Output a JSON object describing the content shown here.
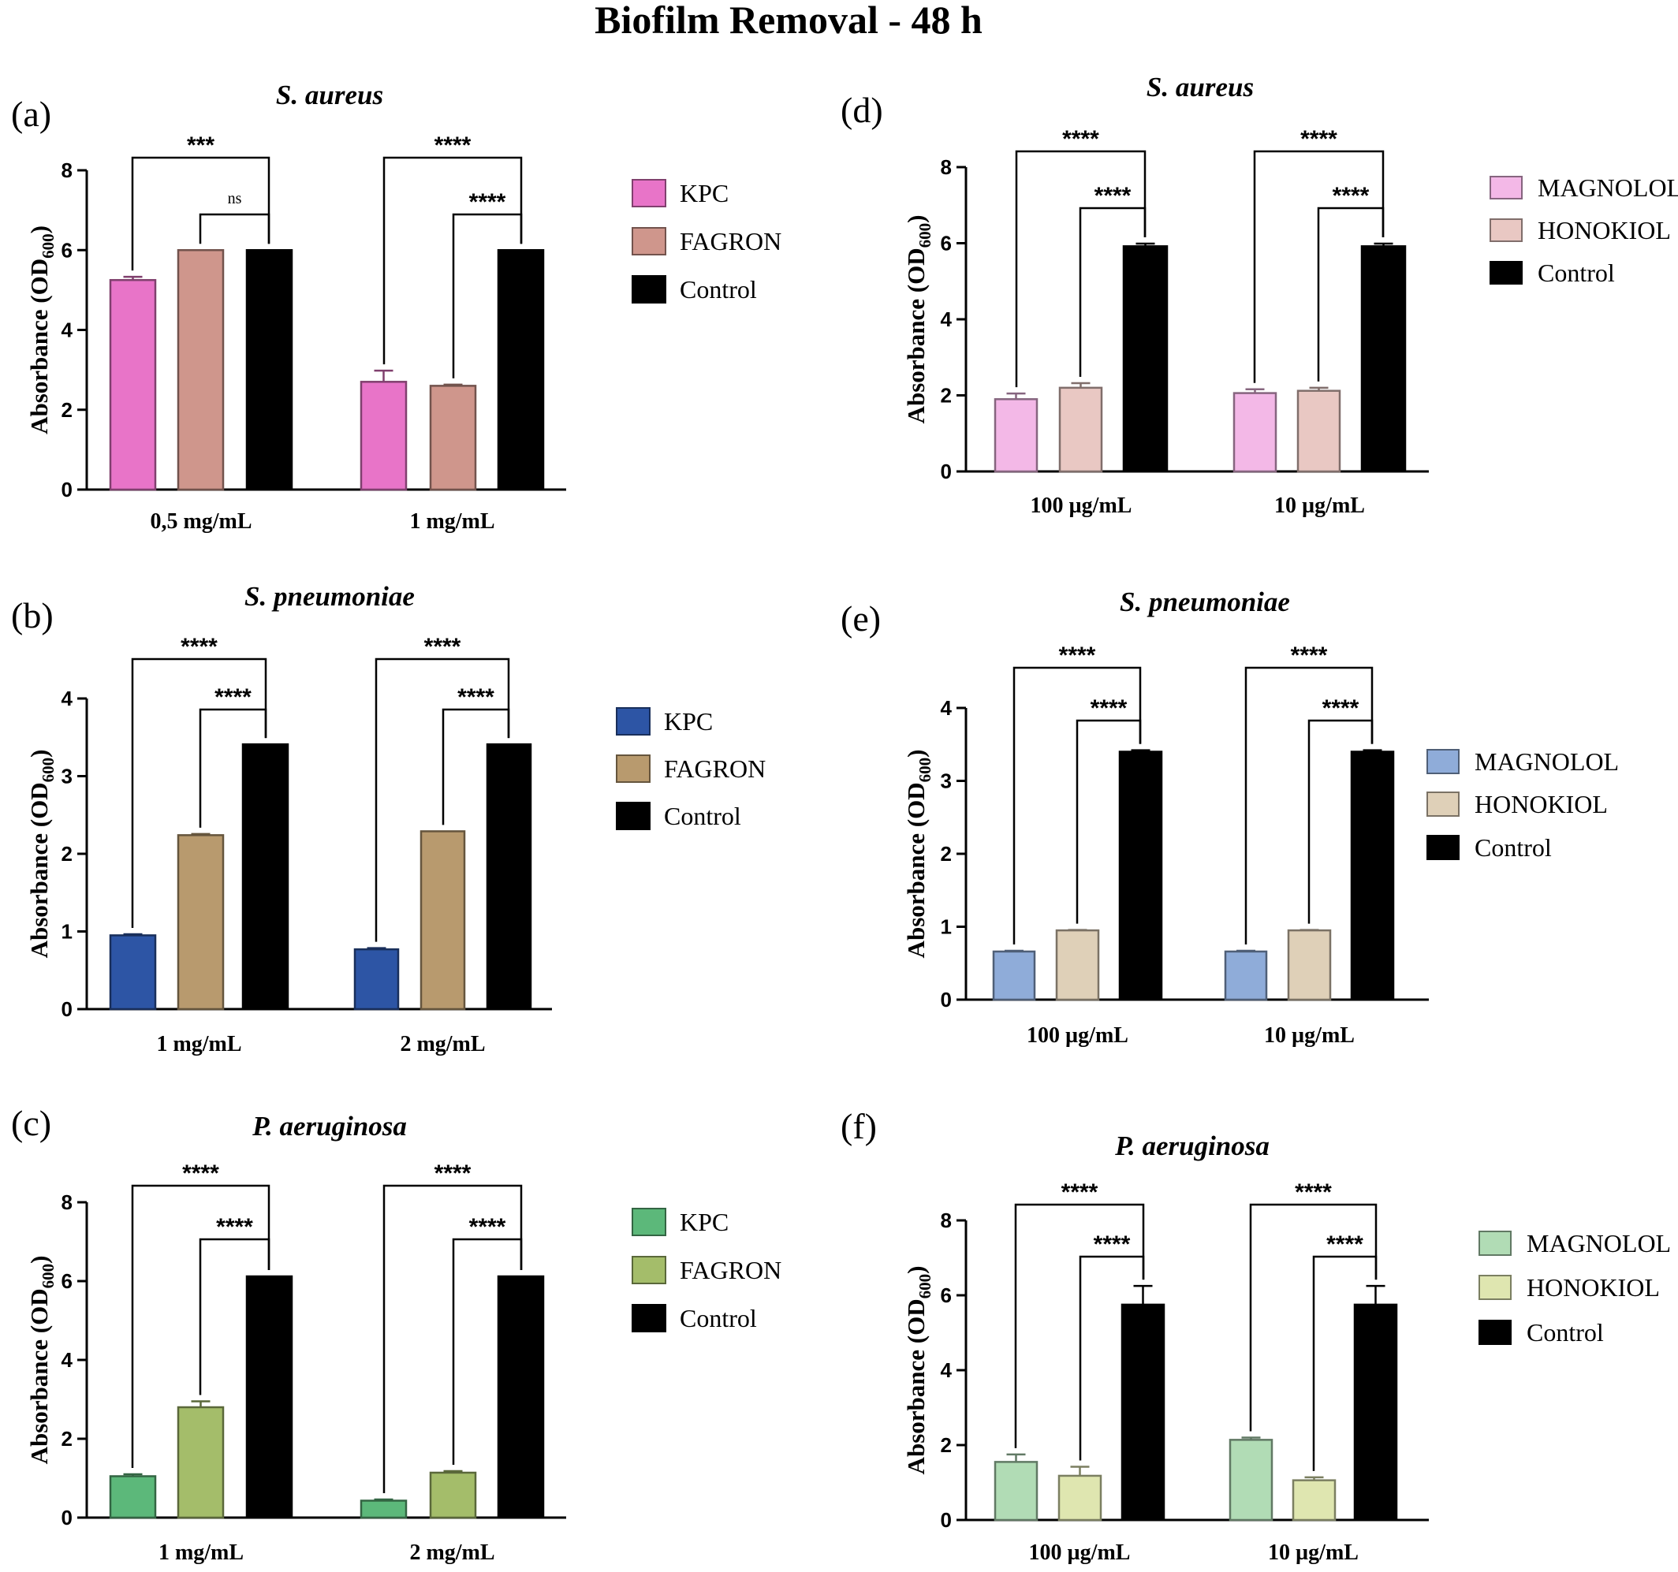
{
  "figure_title": "Biofilm Removal - 48 h",
  "chart_data": [
    {
      "panel": "(a)",
      "title": "S. aureus",
      "type": "bar",
      "ylabel_main": "Absorbance (OD",
      "ylabel_sub": "600",
      "ylabel_end": ")",
      "ylim": [
        0,
        8
      ],
      "yticks": [
        "0",
        "2",
        "4",
        "6",
        "8"
      ],
      "categories": [
        "0,5 mg/mL",
        "1 mg/mL"
      ],
      "series": [
        {
          "name": "KPC",
          "color": "#e874c8",
          "values": [
            5.25,
            2.7
          ],
          "errors": [
            0.08,
            0.28
          ]
        },
        {
          "name": "FAGRON",
          "color": "#cf968c",
          "values": [
            6.0,
            2.6
          ],
          "errors": [
            0,
            0.03
          ]
        },
        {
          "name": "Control",
          "color": "#000000",
          "values": [
            6.0,
            6.0
          ],
          "errors": [
            0,
            0
          ]
        }
      ],
      "significance": [
        {
          "category": 0,
          "from": 0,
          "label": "***"
        },
        {
          "category": 0,
          "from": 1,
          "label": "ns"
        },
        {
          "category": 1,
          "from": 0,
          "label": "****"
        },
        {
          "category": 1,
          "from": 1,
          "label": "****"
        }
      ]
    },
    {
      "panel": "(b)",
      "title": "S. pneumoniae",
      "type": "bar",
      "ylabel_main": "Absorbance (OD",
      "ylabel_sub": "600",
      "ylabel_end": ")",
      "ylim": [
        0,
        4
      ],
      "yticks": [
        "0",
        "1",
        "2",
        "3",
        "4"
      ],
      "categories": [
        "1 mg/mL",
        "2 mg/mL"
      ],
      "series": [
        {
          "name": "KPC",
          "color": "#2d55a5",
          "values": [
            0.95,
            0.77
          ],
          "errors": [
            0.015,
            0.015
          ]
        },
        {
          "name": "FAGRON",
          "color": "#b89a6e",
          "values": [
            2.24,
            2.29
          ],
          "errors": [
            0.015,
            0
          ]
        },
        {
          "name": "Control",
          "color": "#000000",
          "values": [
            3.41,
            3.41
          ],
          "errors": [
            0,
            0
          ]
        }
      ],
      "significance": [
        {
          "category": 0,
          "from": 0,
          "label": "****"
        },
        {
          "category": 0,
          "from": 1,
          "label": "****"
        },
        {
          "category": 1,
          "from": 0,
          "label": "****"
        },
        {
          "category": 1,
          "from": 1,
          "label": "****"
        }
      ]
    },
    {
      "panel": "(c)",
      "title": "P. aeruginosa",
      "type": "bar",
      "ylabel_main": "Absorbance (OD",
      "ylabel_sub": "600",
      "ylabel_end": ")",
      "ylim": [
        0,
        8
      ],
      "yticks": [
        "0",
        "2",
        "4",
        "6",
        "8"
      ],
      "categories": [
        "1 mg/mL",
        "2 mg/mL"
      ],
      "series": [
        {
          "name": "KPC",
          "color": "#5cb87a",
          "values": [
            1.05,
            0.43
          ],
          "errors": [
            0.05,
            0.03
          ]
        },
        {
          "name": "FAGRON",
          "color": "#a4bd6a",
          "values": [
            2.8,
            1.14
          ],
          "errors": [
            0.15,
            0.04
          ]
        },
        {
          "name": "Control",
          "color": "#000000",
          "values": [
            6.12,
            6.12
          ],
          "errors": [
            0,
            0
          ]
        }
      ],
      "significance": [
        {
          "category": 0,
          "from": 0,
          "label": "****"
        },
        {
          "category": 0,
          "from": 1,
          "label": "****"
        },
        {
          "category": 1,
          "from": 0,
          "label": "****"
        },
        {
          "category": 1,
          "from": 1,
          "label": "****"
        }
      ]
    },
    {
      "panel": "(d)",
      "title": "S. aureus",
      "type": "bar",
      "ylabel_main": "Absorbance (OD",
      "ylabel_sub": "600",
      "ylabel_end": ")",
      "ylim": [
        0,
        8
      ],
      "yticks": [
        "0",
        "2",
        "4",
        "6",
        "8"
      ],
      "categories": [
        "100 µg/mL",
        "10 µg/mL"
      ],
      "series": [
        {
          "name": "MAGNOLOL",
          "color": "#f3b8e7",
          "values": [
            1.9,
            2.06
          ],
          "errors": [
            0.15,
            0.1
          ]
        },
        {
          "name": "HONOKIOL",
          "color": "#e9c8c3",
          "values": [
            2.2,
            2.12
          ],
          "errors": [
            0.12,
            0.08
          ]
        },
        {
          "name": "Control",
          "color": "#000000",
          "values": [
            5.92,
            5.92
          ],
          "errors": [
            0.07,
            0.07
          ]
        }
      ],
      "significance": [
        {
          "category": 0,
          "from": 0,
          "label": "****"
        },
        {
          "category": 0,
          "from": 1,
          "label": "****"
        },
        {
          "category": 1,
          "from": 0,
          "label": "****"
        },
        {
          "category": 1,
          "from": 1,
          "label": "****"
        }
      ]
    },
    {
      "panel": "(e)",
      "title": "S. pneumoniae",
      "type": "bar",
      "ylabel_main": "Absorbance (OD",
      "ylabel_sub": "600",
      "ylabel_end": ")",
      "ylim": [
        0,
        4
      ],
      "yticks": [
        "0",
        "1",
        "2",
        "3",
        "4"
      ],
      "categories": [
        "100 µg/mL",
        "10 µg/mL"
      ],
      "series": [
        {
          "name": "MAGNOLOL",
          "color": "#8facd9",
          "values": [
            0.66,
            0.66
          ],
          "errors": [
            0.01,
            0.01
          ]
        },
        {
          "name": "HONOKIOL",
          "color": "#dfd0b8",
          "values": [
            0.95,
            0.95
          ],
          "errors": [
            0.005,
            0.005
          ]
        },
        {
          "name": "Control",
          "color": "#000000",
          "values": [
            3.4,
            3.4
          ],
          "errors": [
            0.02,
            0.02
          ]
        }
      ],
      "significance": [
        {
          "category": 0,
          "from": 0,
          "label": "****"
        },
        {
          "category": 0,
          "from": 1,
          "label": "****"
        },
        {
          "category": 1,
          "from": 0,
          "label": "****"
        },
        {
          "category": 1,
          "from": 1,
          "label": "****"
        }
      ]
    },
    {
      "panel": "(f)",
      "title": "P. aeruginosa",
      "type": "bar",
      "ylabel_main": "Absorbance (OD",
      "ylabel_sub": "600",
      "ylabel_end": ")",
      "ylim": [
        0,
        8
      ],
      "yticks": [
        "0",
        "2",
        "4",
        "6",
        "8"
      ],
      "categories": [
        "100 µg/mL",
        "10 µg/mL"
      ],
      "series": [
        {
          "name": "MAGNOLOL",
          "color": "#b1dcb5",
          "values": [
            1.55,
            2.14
          ],
          "errors": [
            0.2,
            0.06
          ]
        },
        {
          "name": "HONOKIOL",
          "color": "#dfe6b0",
          "values": [
            1.18,
            1.06
          ],
          "errors": [
            0.24,
            0.08
          ]
        },
        {
          "name": "Control",
          "color": "#000000",
          "values": [
            5.75,
            5.75
          ],
          "errors": [
            0.5,
            0.5
          ]
        }
      ],
      "significance": [
        {
          "category": 0,
          "from": 0,
          "label": "****"
        },
        {
          "category": 0,
          "from": 1,
          "label": "****"
        },
        {
          "category": 1,
          "from": 0,
          "label": "****"
        },
        {
          "category": 1,
          "from": 1,
          "label": "****"
        }
      ]
    }
  ]
}
